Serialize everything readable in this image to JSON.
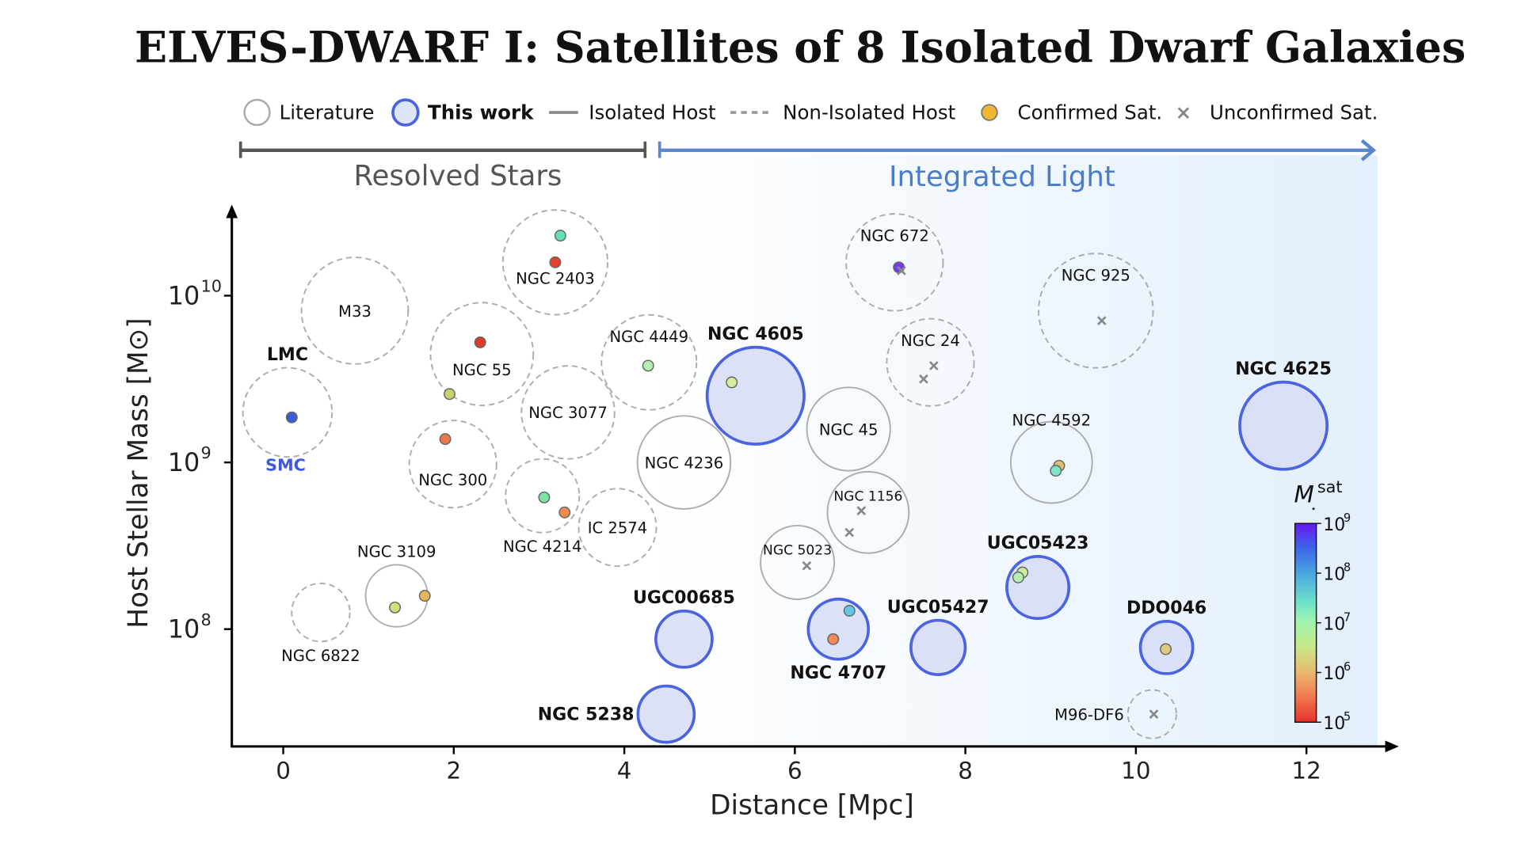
{
  "chart_data": {
    "type": "scatter",
    "title": "ELVES-DWARF I:  Satellites of 8 Isolated Dwarf Galaxies",
    "xlabel": "Distance [Mpc]",
    "ylabel": "Host Stellar Mass [M⊙]",
    "xlim": [
      -0.6,
      12.9
    ],
    "ylim_log10": [
      7.28,
      10.52
    ],
    "y_scale": "log",
    "grid": false,
    "x_ticks": [
      "0",
      "2",
      "4",
      "6",
      "8",
      "10",
      "12"
    ],
    "x_tick_values": [
      0,
      2,
      4,
      6,
      8,
      10,
      12
    ],
    "y_ticks": [
      {
        "base": "10",
        "exp": "10",
        "value": 10
      },
      {
        "base": "10",
        "exp": "9",
        "value": 9
      },
      {
        "base": "10",
        "exp": "8",
        "value": 8
      }
    ],
    "legend": {
      "placement": "top",
      "items": [
        {
          "label": "Literature",
          "marker": "open-gray-circle"
        },
        {
          "label": "This work",
          "marker": "blue-filled-circle",
          "bold": true
        },
        {
          "label": "Isolated Host",
          "marker": "solid-line"
        },
        {
          "label": "Non-Isolated Host",
          "marker": "dashed-line"
        },
        {
          "label": "Confirmed Sat.",
          "marker": "dot"
        },
        {
          "label": "Unconfirmed Sat.",
          "marker": "x"
        }
      ]
    },
    "regimes": [
      {
        "label": "Resolved Stars",
        "color": "#555555",
        "from": -0.5,
        "to": 4.3
      },
      {
        "label": "Integrated Light",
        "color": "#4a7cc9",
        "from": 4.4,
        "to": 12.9
      }
    ],
    "colorbar": {
      "label_main": "M",
      "label_sup": "sat",
      "label_sub": "⋆",
      "ticks": [
        {
          "base": "10",
          "exp": "9"
        },
        {
          "base": "10",
          "exp": "8"
        },
        {
          "base": "10",
          "exp": "7"
        },
        {
          "base": "10",
          "exp": "6"
        },
        {
          "base": "10",
          "exp": "5"
        }
      ],
      "range_log10": [
        5,
        9
      ],
      "colormap": "rainbow"
    },
    "colors": {
      "this_work_edge": "#4a64e0",
      "this_work_fill": "#d6dcf6",
      "literature_edge": "#9a9a9a",
      "background_gradient": "#e2effc",
      "secondary_label": "#3b5bdb"
    },
    "hosts": [
      {
        "name": "LMC",
        "distance": 0.05,
        "log_mass": 9.3,
        "source": "literature",
        "isolated": false,
        "bold": true,
        "secondary_label": "SMC",
        "sats": [
          {
            "distance": 0.1,
            "log_mass": 9.27,
            "color": "#3b5bdb"
          }
        ],
        "unconfirmed": []
      },
      {
        "name": "M33",
        "distance": 0.84,
        "log_mass": 9.91,
        "source": "literature",
        "isolated": false,
        "sats": [],
        "unconfirmed": []
      },
      {
        "name": "NGC 2403",
        "distance": 3.19,
        "log_mass": 10.2,
        "source": "literature",
        "isolated": false,
        "sats": [
          {
            "distance": 3.25,
            "log_mass": 10.36,
            "color": "#63e0b4"
          },
          {
            "distance": 3.19,
            "log_mass": 10.2,
            "color": "#e8412a"
          }
        ],
        "unconfirmed": []
      },
      {
        "name": "NGC 55",
        "distance": 2.33,
        "log_mass": 9.65,
        "source": "literature",
        "isolated": false,
        "sats": [
          {
            "distance": 2.31,
            "log_mass": 9.72,
            "color": "#e3392a"
          },
          {
            "distance": 1.95,
            "log_mass": 9.41,
            "color": "#c6d46a"
          }
        ],
        "unconfirmed": []
      },
      {
        "name": "NGC 3077",
        "distance": 3.34,
        "log_mass": 9.3,
        "source": "literature",
        "isolated": false,
        "sats": [],
        "unconfirmed": []
      },
      {
        "name": "NGC 300",
        "distance": 1.99,
        "log_mass": 8.99,
        "source": "literature",
        "isolated": false,
        "sats": [
          {
            "distance": 1.9,
            "log_mass": 9.14,
            "color": "#e8784a"
          }
        ],
        "unconfirmed": []
      },
      {
        "name": "NGC 4449",
        "distance": 4.29,
        "log_mass": 9.6,
        "source": "literature",
        "isolated": false,
        "sats": [
          {
            "distance": 4.28,
            "log_mass": 9.58,
            "color": "#b4f0b0"
          }
        ],
        "unconfirmed": []
      },
      {
        "name": "NGC 4214",
        "distance": 3.04,
        "log_mass": 8.8,
        "source": "literature",
        "isolated": false,
        "sats": [
          {
            "distance": 3.06,
            "log_mass": 8.79,
            "color": "#7de3a0"
          },
          {
            "distance": 3.3,
            "log_mass": 8.7,
            "color": "#ee8a4a"
          }
        ],
        "unconfirmed": []
      },
      {
        "name": "IC 2574",
        "distance": 3.92,
        "log_mass": 8.61,
        "source": "literature",
        "isolated": false,
        "sats": [],
        "unconfirmed": []
      },
      {
        "name": "NGC 4236",
        "distance": 4.7,
        "log_mass": 9.0,
        "source": "literature",
        "isolated": true,
        "sats": [],
        "unconfirmed": []
      },
      {
        "name": "NGC 3109",
        "distance": 1.33,
        "log_mass": 8.2,
        "source": "literature",
        "isolated": true,
        "sats": [
          {
            "distance": 1.31,
            "log_mass": 8.13,
            "color": "#cfe07a"
          },
          {
            "distance": 1.66,
            "log_mass": 8.2,
            "color": "#e6b55a"
          }
        ],
        "unconfirmed": []
      },
      {
        "name": "NGC 6822",
        "distance": 0.44,
        "log_mass": 8.1,
        "source": "literature",
        "isolated": false,
        "sats": [],
        "unconfirmed": []
      },
      {
        "name": "NGC 4605",
        "distance": 5.54,
        "log_mass": 9.4,
        "source": "this work",
        "isolated": true,
        "bold": true,
        "sats": [
          {
            "distance": 5.26,
            "log_mass": 9.48,
            "color": "#d7ec9a"
          }
        ],
        "unconfirmed": []
      },
      {
        "name": "NGC 672",
        "distance": 7.17,
        "log_mass": 10.2,
        "source": "literature",
        "isolated": false,
        "sats": [
          {
            "distance": 7.22,
            "log_mass": 10.17,
            "color": "#7a3bf0"
          }
        ],
        "unconfirmed": [
          {
            "distance": 7.25,
            "log_mass": 10.15
          }
        ]
      },
      {
        "name": "NGC 24",
        "distance": 7.59,
        "log_mass": 9.6,
        "source": "literature",
        "isolated": false,
        "sats": [],
        "unconfirmed": [
          {
            "distance": 7.63,
            "log_mass": 9.58
          },
          {
            "distance": 7.51,
            "log_mass": 9.5
          }
        ]
      },
      {
        "name": "NGC 45",
        "distance": 6.63,
        "log_mass": 9.2,
        "source": "literature",
        "isolated": true,
        "sats": [],
        "unconfirmed": []
      },
      {
        "name": "NGC 1156",
        "distance": 6.86,
        "log_mass": 8.7,
        "source": "literature",
        "isolated": true,
        "sats": [],
        "unconfirmed": [
          {
            "distance": 6.78,
            "log_mass": 8.71
          },
          {
            "distance": 6.64,
            "log_mass": 8.58
          }
        ]
      },
      {
        "name": "NGC 5023",
        "distance": 6.03,
        "log_mass": 8.4,
        "source": "literature",
        "isolated": true,
        "sats": [],
        "unconfirmed": [
          {
            "distance": 6.14,
            "log_mass": 8.38
          }
        ]
      },
      {
        "name": "NGC 925",
        "distance": 9.53,
        "log_mass": 9.91,
        "source": "literature",
        "isolated": false,
        "sats": [],
        "unconfirmed": [
          {
            "distance": 9.6,
            "log_mass": 9.85
          }
        ]
      },
      {
        "name": "NGC 4592",
        "distance": 9.01,
        "log_mass": 9.0,
        "source": "literature",
        "isolated": true,
        "sats": [
          {
            "distance": 9.1,
            "log_mass": 8.98,
            "color": "#e0c070"
          },
          {
            "distance": 9.06,
            "log_mass": 8.95,
            "color": "#7ee6c8"
          }
        ],
        "unconfirmed": []
      },
      {
        "name": "NGC 4625",
        "distance": 11.73,
        "log_mass": 9.22,
        "source": "this work",
        "isolated": true,
        "bold": true,
        "sats": [],
        "unconfirmed": []
      },
      {
        "name": "UGC05423",
        "distance": 8.85,
        "log_mass": 8.25,
        "source": "this work",
        "isolated": true,
        "bold": true,
        "sats": [
          {
            "distance": 8.67,
            "log_mass": 8.34,
            "color": "#c9ee98"
          },
          {
            "distance": 8.62,
            "log_mass": 8.31,
            "color": "#b4f0b0"
          }
        ],
        "unconfirmed": []
      },
      {
        "name": "UGC05427",
        "distance": 7.68,
        "log_mass": 7.89,
        "source": "this work",
        "isolated": true,
        "bold": true,
        "sats": [],
        "unconfirmed": []
      },
      {
        "name": "DDO046",
        "distance": 10.36,
        "log_mass": 7.89,
        "source": "this work",
        "isolated": true,
        "bold": true,
        "sats": [
          {
            "distance": 10.35,
            "log_mass": 7.88,
            "color": "#d9cc80"
          }
        ],
        "unconfirmed": []
      },
      {
        "name": "NGC 4707",
        "distance": 6.51,
        "log_mass": 8.0,
        "source": "this work",
        "isolated": true,
        "bold": true,
        "sats": [
          {
            "distance": 6.64,
            "log_mass": 8.11,
            "color": "#5ec8e6"
          },
          {
            "distance": 6.45,
            "log_mass": 7.94,
            "color": "#ef8a5a"
          }
        ],
        "unconfirmed": []
      },
      {
        "name": "UGC00685",
        "distance": 4.7,
        "log_mass": 7.94,
        "source": "this work",
        "isolated": true,
        "bold": true,
        "sats": [],
        "unconfirmed": []
      },
      {
        "name": "NGC 5238",
        "distance": 4.49,
        "log_mass": 7.49,
        "source": "this work",
        "isolated": true,
        "bold": true,
        "sats": [],
        "unconfirmed": []
      },
      {
        "name": "M96-DF6",
        "distance": 10.19,
        "log_mass": 7.49,
        "source": "literature",
        "isolated": false,
        "sats": [],
        "unconfirmed": [
          {
            "distance": 10.21,
            "log_mass": 7.49
          }
        ]
      }
    ]
  }
}
